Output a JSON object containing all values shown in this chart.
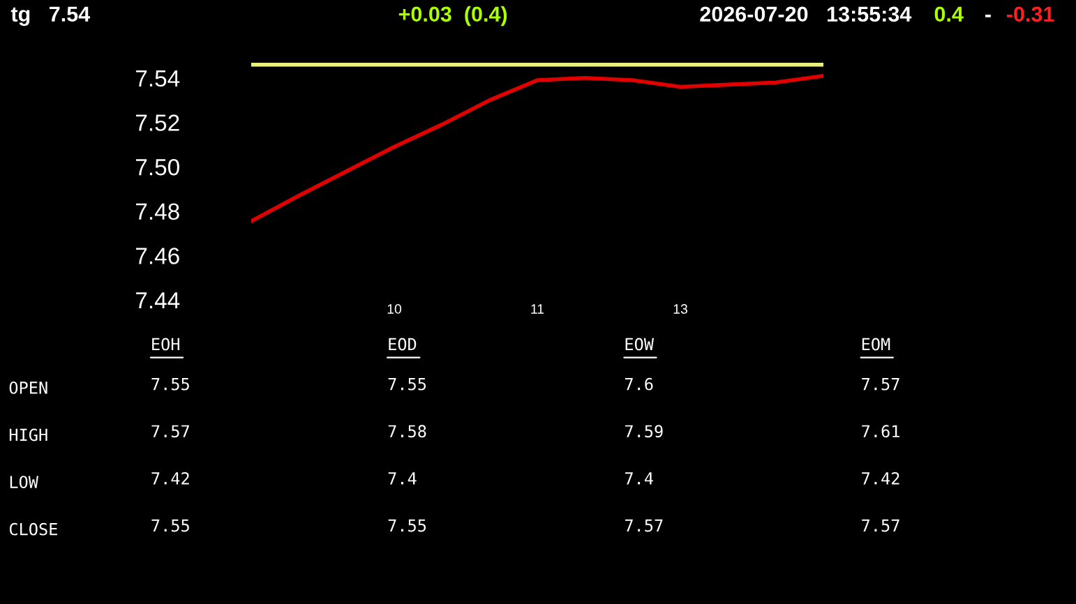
{
  "chart_data": [
    {
      "type": "line",
      "title": "tg   7.54",
      "annotations": [
        "+0.03  (0.4)",
        "2026-07-20   13:55:34",
        "0.4",
        "-",
        "-0.31"
      ],
      "categories": [
        null,
        null,
        null,
        "10",
        null,
        null,
        "11",
        null,
        null,
        "13",
        null,
        null,
        null
      ],
      "series": [
        {
          "color": "#e00000",
          "values": [
            7.4755,
            7.487,
            7.498,
            7.509,
            7.519,
            7.53,
            7.539,
            7.54,
            7.539,
            7.536,
            7.537,
            7.538,
            7.541
          ]
        }
      ],
      "ref_lines": [
        {
          "axis": "y",
          "value": 7.546,
          "color": "#e8f080"
        }
      ],
      "ylim": [
        7.44,
        7.55
      ],
      "yticks": [
        7.44,
        7.46,
        7.48,
        {
          "value": 7.5,
          "label": "7.50"
        },
        7.52,
        7.54
      ],
      "grid": false,
      "legend": false
    },
    {
      "type": "other",
      "categories": [
        "EOH",
        "EOD",
        "EOW",
        "EOM"
      ],
      "y_categories": [
        "OPEN",
        "HIGH",
        "LOW",
        "CLOSE"
      ],
      "cells": [
        [
          "7.55",
          "7.55",
          "7.6",
          "7.57"
        ],
        [
          "7.57",
          "7.58",
          "7.59",
          "7.61"
        ],
        [
          "7.42",
          "7.4",
          "7.4",
          "7.42"
        ],
        [
          "7.55",
          "7.55",
          "7.57",
          "7.57"
        ]
      ]
    }
  ]
}
